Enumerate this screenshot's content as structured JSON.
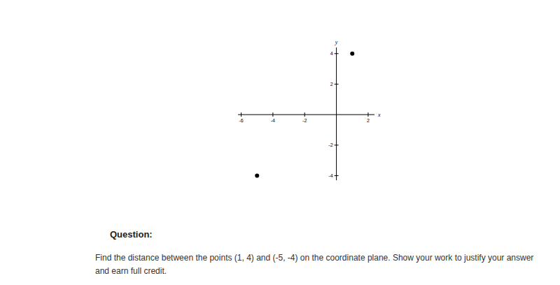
{
  "chart_data": {
    "type": "scatter",
    "x": [
      1,
      -5
    ],
    "values": [
      4,
      -4
    ],
    "xlim": [
      -6.2,
      2.4
    ],
    "ylim": [
      -4.3,
      4.4
    ],
    "xticks": [
      -6,
      -4,
      -2,
      2
    ],
    "yticks": [
      -4,
      -2,
      2,
      4
    ],
    "xlabel": "x",
    "ylabel": "y",
    "color": "#000000",
    "marker": "circle",
    "grid": false
  },
  "question": {
    "heading": "Question:",
    "text": "Find the distance between the points (1, 4) and (-5, -4) on the coordinate plane. Show your work to justify your answer and earn full credit."
  }
}
